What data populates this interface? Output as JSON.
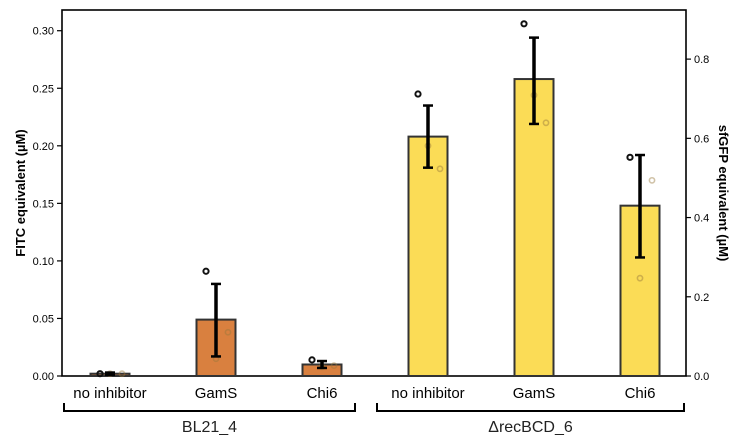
{
  "chart_data": {
    "type": "bar",
    "categories": [
      "no inhibitor",
      "GamS",
      "Chi6",
      "no inhibitor",
      "GamS",
      "Chi6"
    ],
    "groups": [
      {
        "label": "BL21_4",
        "members": [
          0,
          1,
          2
        ]
      },
      {
        "label": "ΔrecBCD_6",
        "members": [
          3,
          4,
          5
        ]
      }
    ],
    "values": [
      0.002,
      0.049,
      0.01,
      0.208,
      0.258,
      0.148
    ],
    "error_bars": [
      {
        "low": 0.001,
        "high": 0.003
      },
      {
        "low": 0.017,
        "high": 0.08
      },
      {
        "low": 0.007,
        "high": 0.013
      },
      {
        "low": 0.181,
        "high": 0.235
      },
      {
        "low": 0.219,
        "high": 0.294
      },
      {
        "low": 0.103,
        "high": 0.192
      }
    ],
    "points": [
      {
        "bar": 0,
        "values": [
          0.002,
          0.002,
          0.002
        ]
      },
      {
        "bar": 1,
        "values": [
          0.091,
          0.038,
          0.015
        ]
      },
      {
        "bar": 2,
        "values": [
          0.014,
          0.009,
          0.008
        ]
      },
      {
        "bar": 3,
        "values": [
          0.245,
          0.18,
          0.2
        ]
      },
      {
        "bar": 4,
        "values": [
          0.306,
          0.22,
          0.244
        ]
      },
      {
        "bar": 5,
        "values": [
          0.19,
          0.17,
          0.085
        ]
      }
    ],
    "bar_colors": [
      "#d9803f",
      "#d9803f",
      "#d9803f",
      "#fbdc56",
      "#fbdc56",
      "#fbdc56"
    ],
    "edge_color": "#333333",
    "ylabel": "FITC equivalent (µM)",
    "ylabel_right": "sfGFP equivalent (µM)",
    "ylim": [
      0,
      0.318
    ],
    "yticks": [
      "0.00",
      "0.05",
      "0.10",
      "0.15",
      "0.20",
      "0.25",
      "0.30"
    ],
    "ylim_right": [
      0,
      0.924
    ],
    "yticks_right": [
      "0.0",
      "0.2",
      "0.4",
      "0.6",
      "0.8"
    ],
    "grid": false,
    "legend": "none"
  }
}
